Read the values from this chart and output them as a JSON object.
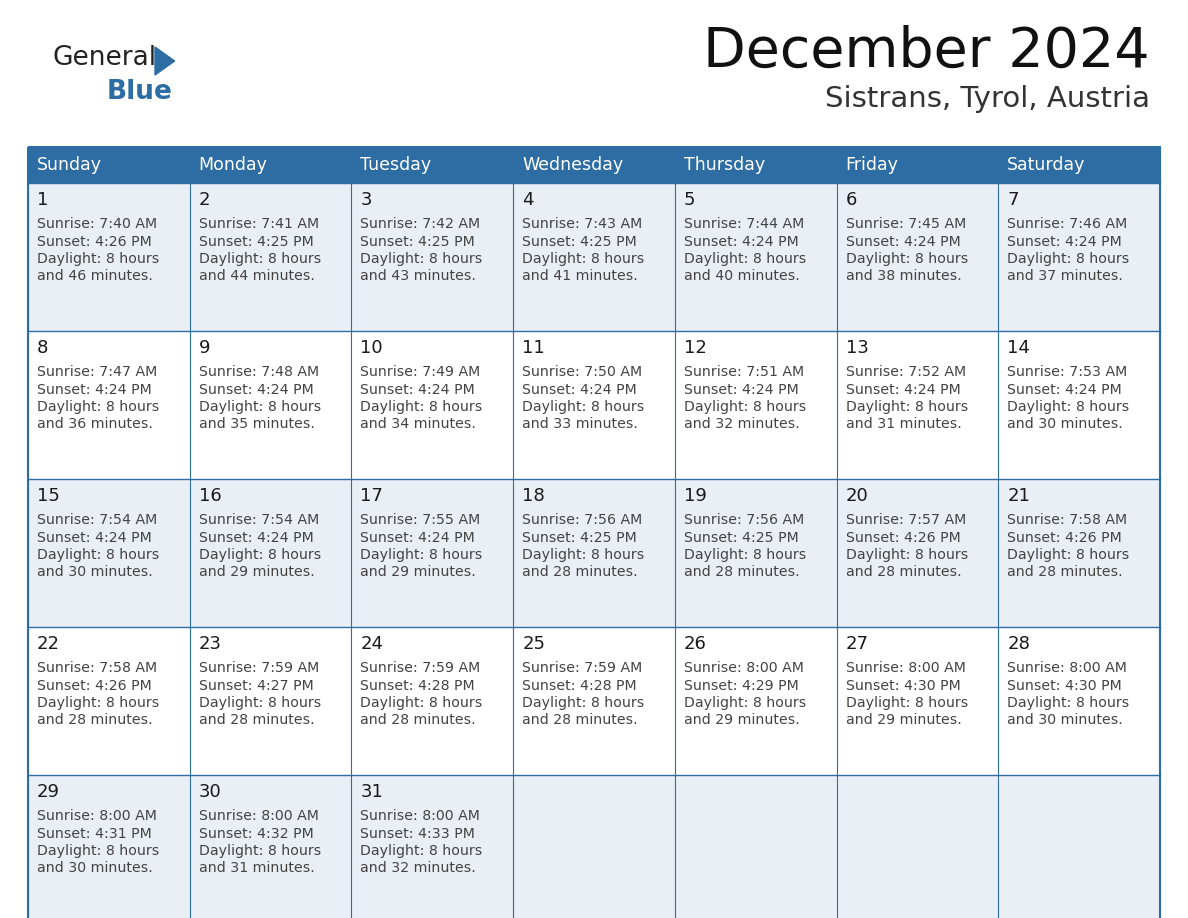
{
  "title": "December 2024",
  "subtitle": "Sistrans, Tyrol, Austria",
  "days_of_week": [
    "Sunday",
    "Monday",
    "Tuesday",
    "Wednesday",
    "Thursday",
    "Friday",
    "Saturday"
  ],
  "header_bg_color": "#2E6DA4",
  "header_text_color": "#FFFFFF",
  "cell_bg_even": "#EAEFF5",
  "cell_bg_odd": "#FFFFFF",
  "grid_line_color": "#2E6DA4",
  "title_color": "#1a1a1a",
  "subtitle_color": "#333333",
  "day_number_color": "#1a1a1a",
  "cell_text_color": "#444444",
  "calendar_data": [
    [
      {
        "day": "1",
        "sunrise": "7:40 AM",
        "sunset": "4:26 PM",
        "daylight_line1": "8 hours",
        "daylight_line2": "and 46 minutes."
      },
      {
        "day": "2",
        "sunrise": "7:41 AM",
        "sunset": "4:25 PM",
        "daylight_line1": "8 hours",
        "daylight_line2": "and 44 minutes."
      },
      {
        "day": "3",
        "sunrise": "7:42 AM",
        "sunset": "4:25 PM",
        "daylight_line1": "8 hours",
        "daylight_line2": "and 43 minutes."
      },
      {
        "day": "4",
        "sunrise": "7:43 AM",
        "sunset": "4:25 PM",
        "daylight_line1": "8 hours",
        "daylight_line2": "and 41 minutes."
      },
      {
        "day": "5",
        "sunrise": "7:44 AM",
        "sunset": "4:24 PM",
        "daylight_line1": "8 hours",
        "daylight_line2": "and 40 minutes."
      },
      {
        "day": "6",
        "sunrise": "7:45 AM",
        "sunset": "4:24 PM",
        "daylight_line1": "8 hours",
        "daylight_line2": "and 38 minutes."
      },
      {
        "day": "7",
        "sunrise": "7:46 AM",
        "sunset": "4:24 PM",
        "daylight_line1": "8 hours",
        "daylight_line2": "and 37 minutes."
      }
    ],
    [
      {
        "day": "8",
        "sunrise": "7:47 AM",
        "sunset": "4:24 PM",
        "daylight_line1": "8 hours",
        "daylight_line2": "and 36 minutes."
      },
      {
        "day": "9",
        "sunrise": "7:48 AM",
        "sunset": "4:24 PM",
        "daylight_line1": "8 hours",
        "daylight_line2": "and 35 minutes."
      },
      {
        "day": "10",
        "sunrise": "7:49 AM",
        "sunset": "4:24 PM",
        "daylight_line1": "8 hours",
        "daylight_line2": "and 34 minutes."
      },
      {
        "day": "11",
        "sunrise": "7:50 AM",
        "sunset": "4:24 PM",
        "daylight_line1": "8 hours",
        "daylight_line2": "and 33 minutes."
      },
      {
        "day": "12",
        "sunrise": "7:51 AM",
        "sunset": "4:24 PM",
        "daylight_line1": "8 hours",
        "daylight_line2": "and 32 minutes."
      },
      {
        "day": "13",
        "sunrise": "7:52 AM",
        "sunset": "4:24 PM",
        "daylight_line1": "8 hours",
        "daylight_line2": "and 31 minutes."
      },
      {
        "day": "14",
        "sunrise": "7:53 AM",
        "sunset": "4:24 PM",
        "daylight_line1": "8 hours",
        "daylight_line2": "and 30 minutes."
      }
    ],
    [
      {
        "day": "15",
        "sunrise": "7:54 AM",
        "sunset": "4:24 PM",
        "daylight_line1": "8 hours",
        "daylight_line2": "and 30 minutes."
      },
      {
        "day": "16",
        "sunrise": "7:54 AM",
        "sunset": "4:24 PM",
        "daylight_line1": "8 hours",
        "daylight_line2": "and 29 minutes."
      },
      {
        "day": "17",
        "sunrise": "7:55 AM",
        "sunset": "4:24 PM",
        "daylight_line1": "8 hours",
        "daylight_line2": "and 29 minutes."
      },
      {
        "day": "18",
        "sunrise": "7:56 AM",
        "sunset": "4:25 PM",
        "daylight_line1": "8 hours",
        "daylight_line2": "and 28 minutes."
      },
      {
        "day": "19",
        "sunrise": "7:56 AM",
        "sunset": "4:25 PM",
        "daylight_line1": "8 hours",
        "daylight_line2": "and 28 minutes."
      },
      {
        "day": "20",
        "sunrise": "7:57 AM",
        "sunset": "4:26 PM",
        "daylight_line1": "8 hours",
        "daylight_line2": "and 28 minutes."
      },
      {
        "day": "21",
        "sunrise": "7:58 AM",
        "sunset": "4:26 PM",
        "daylight_line1": "8 hours",
        "daylight_line2": "and 28 minutes."
      }
    ],
    [
      {
        "day": "22",
        "sunrise": "7:58 AM",
        "sunset": "4:26 PM",
        "daylight_line1": "8 hours",
        "daylight_line2": "and 28 minutes."
      },
      {
        "day": "23",
        "sunrise": "7:59 AM",
        "sunset": "4:27 PM",
        "daylight_line1": "8 hours",
        "daylight_line2": "and 28 minutes."
      },
      {
        "day": "24",
        "sunrise": "7:59 AM",
        "sunset": "4:28 PM",
        "daylight_line1": "8 hours",
        "daylight_line2": "and 28 minutes."
      },
      {
        "day": "25",
        "sunrise": "7:59 AM",
        "sunset": "4:28 PM",
        "daylight_line1": "8 hours",
        "daylight_line2": "and 28 minutes."
      },
      {
        "day": "26",
        "sunrise": "8:00 AM",
        "sunset": "4:29 PM",
        "daylight_line1": "8 hours",
        "daylight_line2": "and 29 minutes."
      },
      {
        "day": "27",
        "sunrise": "8:00 AM",
        "sunset": "4:30 PM",
        "daylight_line1": "8 hours",
        "daylight_line2": "and 29 minutes."
      },
      {
        "day": "28",
        "sunrise": "8:00 AM",
        "sunset": "4:30 PM",
        "daylight_line1": "8 hours",
        "daylight_line2": "and 30 minutes."
      }
    ],
    [
      {
        "day": "29",
        "sunrise": "8:00 AM",
        "sunset": "4:31 PM",
        "daylight_line1": "8 hours",
        "daylight_line2": "and 30 minutes."
      },
      {
        "day": "30",
        "sunrise": "8:00 AM",
        "sunset": "4:32 PM",
        "daylight_line1": "8 hours",
        "daylight_line2": "and 31 minutes."
      },
      {
        "day": "31",
        "sunrise": "8:00 AM",
        "sunset": "4:33 PM",
        "daylight_line1": "8 hours",
        "daylight_line2": "and 32 minutes."
      },
      null,
      null,
      null,
      null
    ]
  ]
}
